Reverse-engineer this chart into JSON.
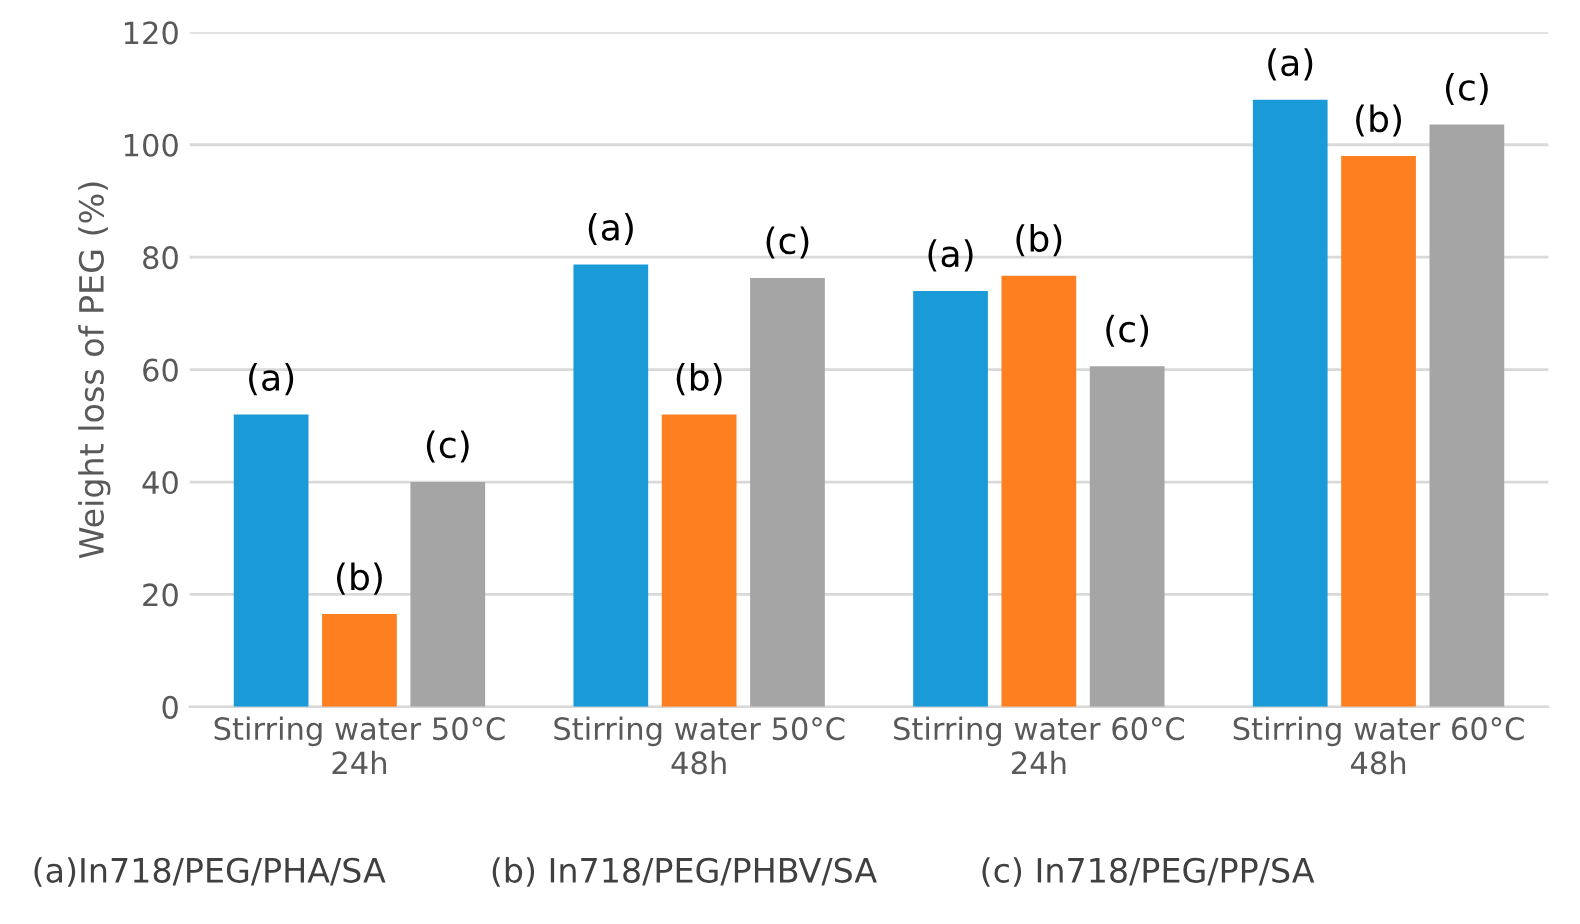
{
  "chart_data": {
    "type": "bar",
    "ylabel": "Weight loss of PEG (%)",
    "categories": [
      "Stirring water 50°C\n24h",
      "Stirring water 50°C\n48h",
      "Stirring water 60°C\n24h",
      "Stirring water 60°C\n48h"
    ],
    "series": [
      {
        "color": "#1a9bd7",
        "values": [
          52,
          78.7,
          74,
          108
        ],
        "value_labels": [
          "(a)",
          "(a)",
          "(a)",
          "(a)"
        ]
      },
      {
        "color": "#fd7f20",
        "values": [
          16.5,
          52,
          76.7,
          98
        ],
        "value_labels": [
          "(b)",
          "(b)",
          "(b)",
          "(b)"
        ]
      },
      {
        "color": "#a5a5a5",
        "values": [
          40,
          76.3,
          60.6,
          103.6
        ],
        "value_labels": [
          "(c)",
          "(c)",
          "(c)",
          "(c)"
        ]
      }
    ],
    "ylim": [
      0,
      120
    ],
    "yticks": [
      0,
      20,
      40,
      60,
      80,
      100,
      120
    ],
    "grid": "y",
    "legend": false,
    "annotations": [
      "(a)In718/PEG/PHA/SA",
      "(b) In718/PEG/PHBV/SA",
      "(c) In718/PEG/PP/SA"
    ]
  }
}
